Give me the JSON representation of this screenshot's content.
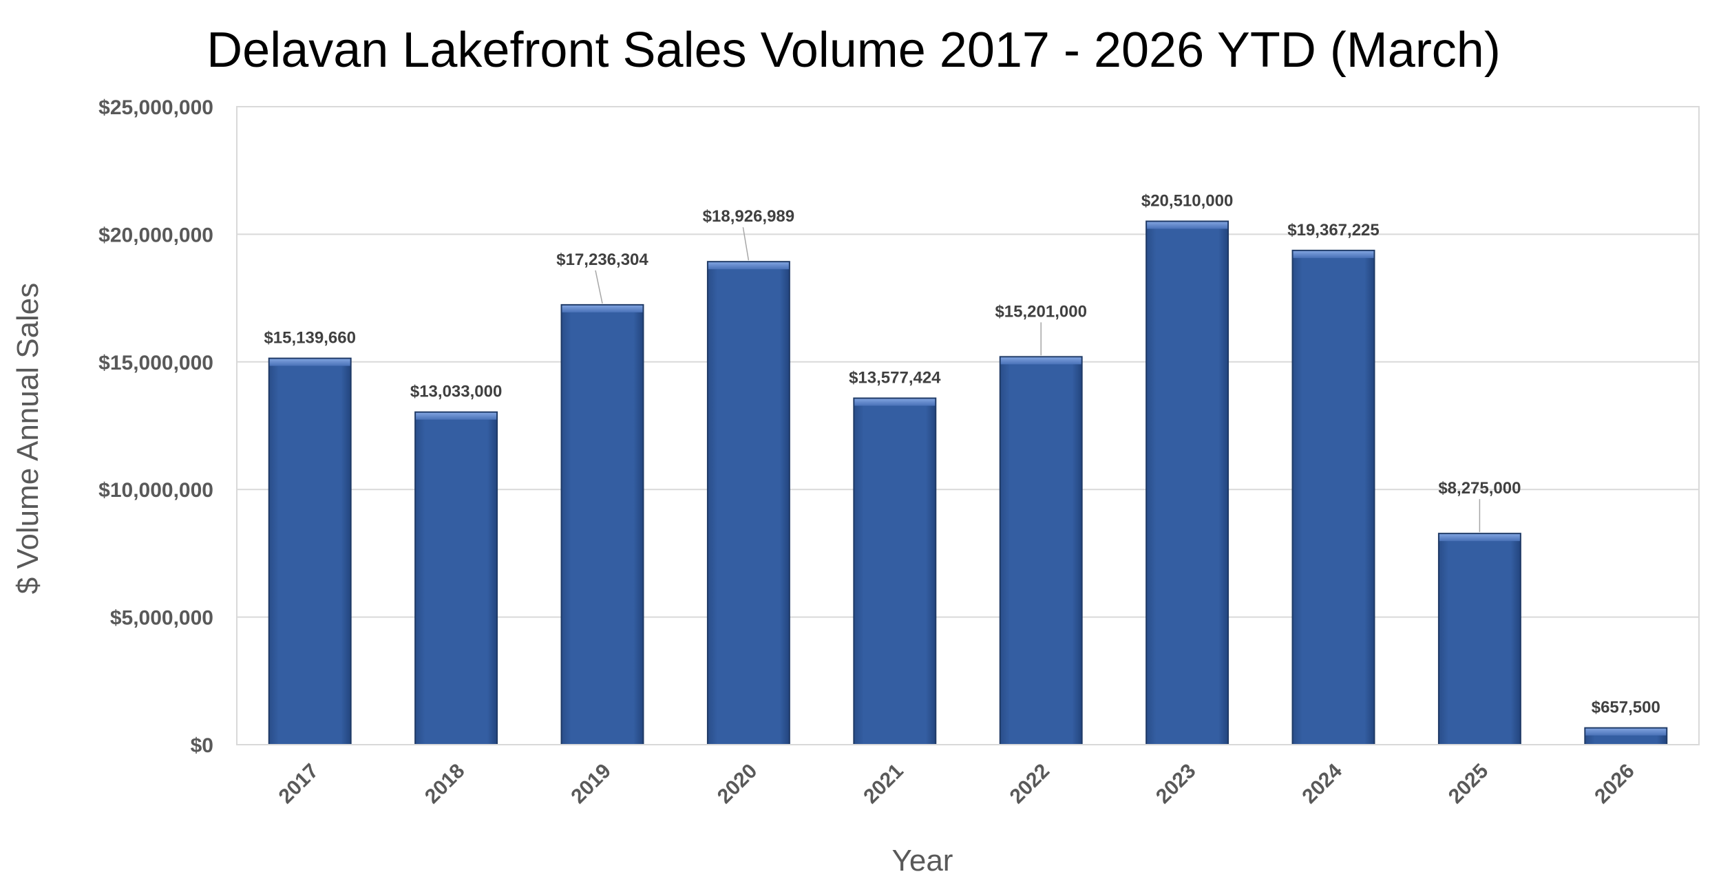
{
  "chart_data": {
    "type": "bar",
    "title": "Delavan Lakefront Sales Volume 2017 - 2026 YTD (March)",
    "xlabel": "Year",
    "ylabel": "$ Volume Annual Sales",
    "categories": [
      "2017",
      "2018",
      "2019",
      "2020",
      "2021",
      "2022",
      "2023",
      "2024",
      "2025",
      "2026"
    ],
    "values": [
      15139660,
      13033000,
      17236304,
      18926989,
      13577424,
      15201000,
      20510000,
      19367225,
      8275000,
      657500
    ],
    "data_labels": [
      "$15,139,660",
      "$13,033,000",
      "$17,236,304",
      "$18,926,989",
      "$13,577,424",
      "$15,201,000",
      "$20,510,000",
      "$19,367,225",
      "$8,275,000",
      "$657,500"
    ],
    "ylim": [
      0,
      25000000
    ],
    "yticks": [
      0,
      5000000,
      10000000,
      15000000,
      20000000,
      25000000
    ],
    "ytick_labels": [
      "$0",
      "$5,000,000",
      "$10,000,000",
      "$15,000,000",
      "$20,000,000",
      "$25,000,000"
    ],
    "grid": true,
    "legend": "none",
    "colors": {
      "bar_fill": "#335C9E",
      "bar_top": "#5A82C8",
      "bar_edge": "#1F3A66"
    }
  }
}
